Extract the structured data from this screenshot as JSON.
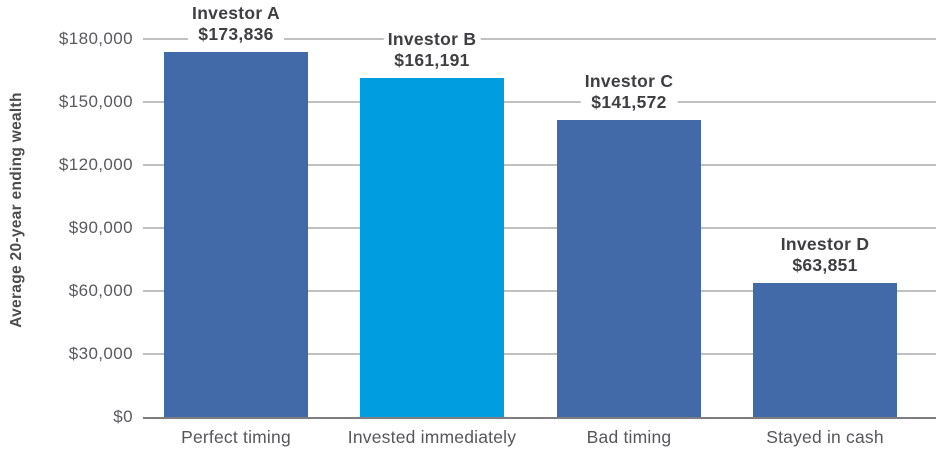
{
  "chart": {
    "ylabel": "Average 20-year ending wealth",
    "yticks": [
      {
        "label": "$180,000",
        "value": 180000
      },
      {
        "label": "$150,000",
        "value": 150000
      },
      {
        "label": "$120,000",
        "value": 120000
      },
      {
        "label": "$90,000",
        "value": 90000
      },
      {
        "label": "$60,000",
        "value": 60000
      },
      {
        "label": "$30,000",
        "value": 30000
      },
      {
        "label": "$0",
        "value": 0
      }
    ],
    "bars": [
      {
        "investor": "Investor A",
        "amount": "$173,836",
        "value": 173836,
        "category": "Perfect timing",
        "color": "#4269A8"
      },
      {
        "investor": "Investor B",
        "amount": "$161,191",
        "value": 161191,
        "category": "Invested immediately",
        "color": "#009EE0"
      },
      {
        "investor": "Investor C",
        "amount": "$141,572",
        "value": 141572,
        "category": "Bad timing",
        "color": "#4269A8"
      },
      {
        "investor": "Investor D",
        "amount": "$63,851",
        "value": 63851,
        "category": "Stayed in cash",
        "color": "#4269A8"
      }
    ]
  },
  "chart_data": {
    "type": "bar",
    "title": "",
    "xlabel": "",
    "ylabel": "Average 20-year ending wealth",
    "categories": [
      "Perfect timing",
      "Invested immediately",
      "Bad timing",
      "Stayed in cash"
    ],
    "values": [
      173836,
      161191,
      141572,
      63851
    ],
    "bar_labels": [
      [
        "Investor A",
        "$173,836"
      ],
      [
        "Investor B",
        "$161,191"
      ],
      [
        "Investor C",
        "$141,572"
      ],
      [
        "Investor D",
        "$63,851"
      ]
    ],
    "ylim": [
      0,
      180000
    ],
    "ytick_step": 30000,
    "ytick_labels": [
      "$0",
      "$30,000",
      "$60,000",
      "$90,000",
      "$120,000",
      "$150,000",
      "$180,000"
    ],
    "grid": true,
    "legend": "none",
    "bar_colors": [
      "#4269A8",
      "#009EE0",
      "#4269A8",
      "#4269A8"
    ]
  },
  "colors": {
    "bar_dark_blue": "#4269A8",
    "bar_light_blue": "#009EE0",
    "gridline": "#BFC0C2",
    "axis_line": "#7D7E81",
    "bar_label_text": "#3E3F43",
    "tick_text": "#595A5E",
    "category_text": "#56575B",
    "y_title_text": "#4B4C4F",
    "background": "#FFFFFF"
  }
}
